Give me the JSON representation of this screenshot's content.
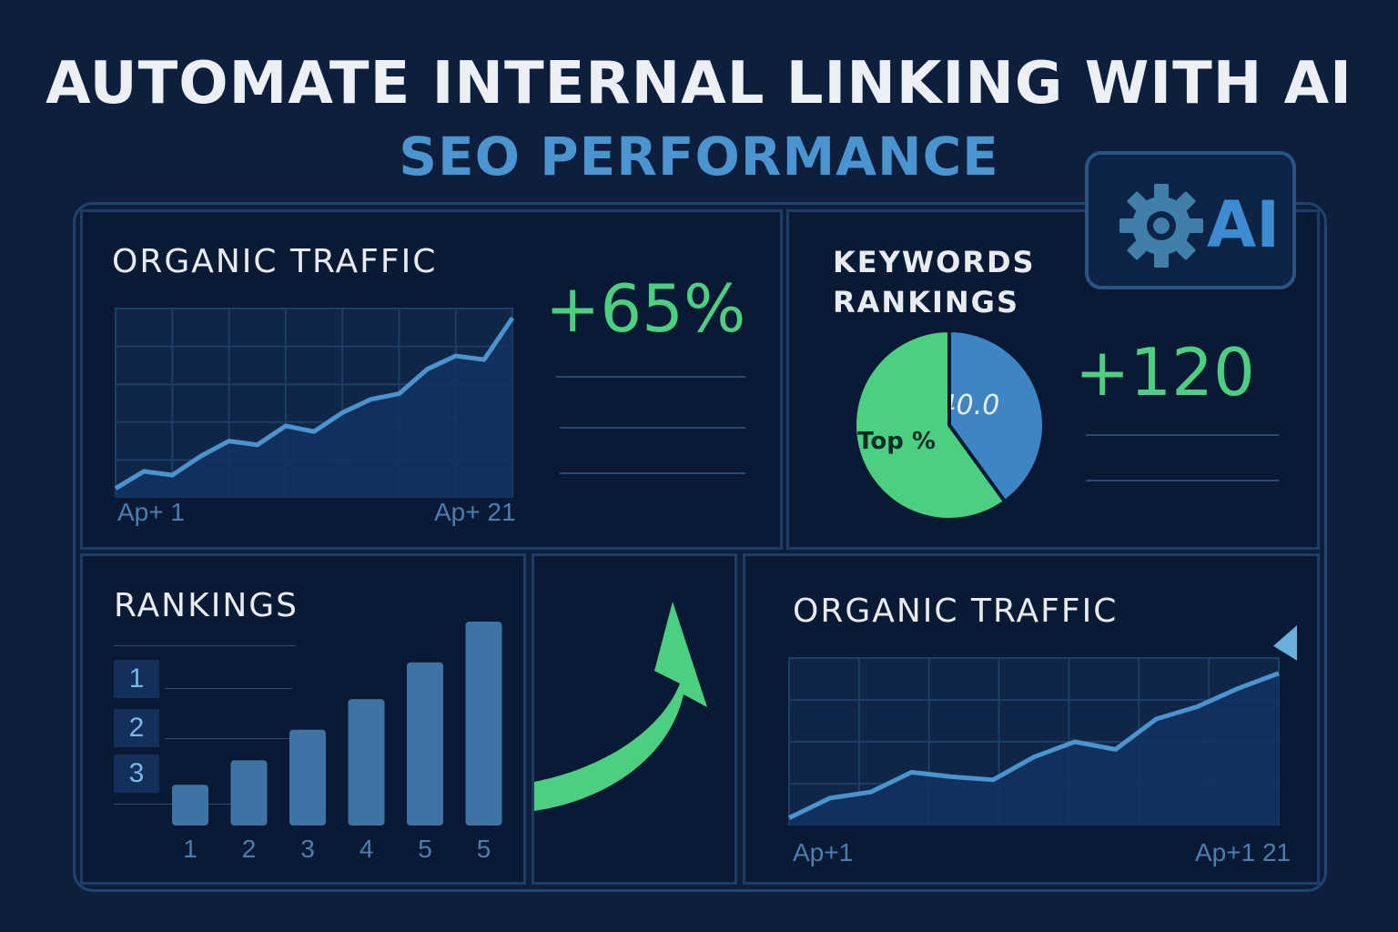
{
  "header": {
    "title": "AUTOMATE INTERNAL LINKING WITH AI",
    "subtitle": "SEO PERFORMANCE"
  },
  "ai_badge": {
    "label": "AI",
    "icon": "gear-icon"
  },
  "panels": {
    "organic_traffic_top": {
      "label": "ORGANIC TRAFFIC",
      "kpi": "+65%",
      "x_start": "Ap+ 1",
      "x_end": "Ap+ 21"
    },
    "keywords": {
      "label_line1": "KEYWORDS",
      "label_line2": "RANKINGS",
      "kpi": "+120",
      "slice_blue_label": "40.0",
      "slice_green_label": "Top %"
    },
    "rankings": {
      "label": "RANKINGS",
      "rank_labels": [
        "1",
        "2",
        "3"
      ],
      "x_labels": [
        "1",
        "2",
        "3",
        "4",
        "5",
        "5"
      ]
    },
    "organic_traffic_bottom": {
      "label": "ORGANIC TRAFFIC",
      "x_start": "Ap+1",
      "x_end": "Ap+1 21"
    }
  },
  "chart_data": [
    {
      "type": "line",
      "title": "ORGANIC TRAFFIC",
      "x": [
        "Ap+ 1",
        "",
        "",
        "",
        "",
        "",
        "",
        "",
        "",
        "",
        "",
        "",
        "",
        "",
        "Ap+ 21"
      ],
      "values": [
        5,
        14,
        12,
        22,
        30,
        28,
        38,
        35,
        45,
        52,
        55,
        68,
        75,
        73,
        95
      ],
      "ylim": [
        0,
        100
      ],
      "grid": true,
      "annotation": "+65%"
    },
    {
      "type": "pie",
      "title": "KEYWORDS RANKINGS",
      "slices": [
        {
          "label": "40.0",
          "value": 40,
          "color": "#3d85c3"
        },
        {
          "label": "Top %",
          "value": 60,
          "color": "#4ccf80"
        }
      ],
      "annotation": "+120"
    },
    {
      "type": "bar",
      "title": "RANKINGS",
      "categories": [
        "1",
        "2",
        "3",
        "4",
        "5",
        "5"
      ],
      "values": [
        20,
        32,
        47,
        62,
        80,
        100
      ],
      "ylim": [
        0,
        100
      ],
      "color": "#3f73a3"
    },
    {
      "type": "line",
      "title": "ORGANIC TRAFFIC",
      "x": [
        "Ap+1",
        "",
        "",
        "",
        "",
        "",
        "",
        "",
        "",
        "",
        "",
        "",
        "Ap+1 21"
      ],
      "values": [
        5,
        18,
        22,
        35,
        32,
        30,
        45,
        55,
        50,
        70,
        78,
        90,
        100
      ],
      "ylim": [
        0,
        110
      ],
      "grid": true,
      "color": "#4a94cf"
    }
  ],
  "colors": {
    "background": "#0d1f3d",
    "accent_green": "#4ccf80",
    "accent_blue": "#4a94cf"
  }
}
